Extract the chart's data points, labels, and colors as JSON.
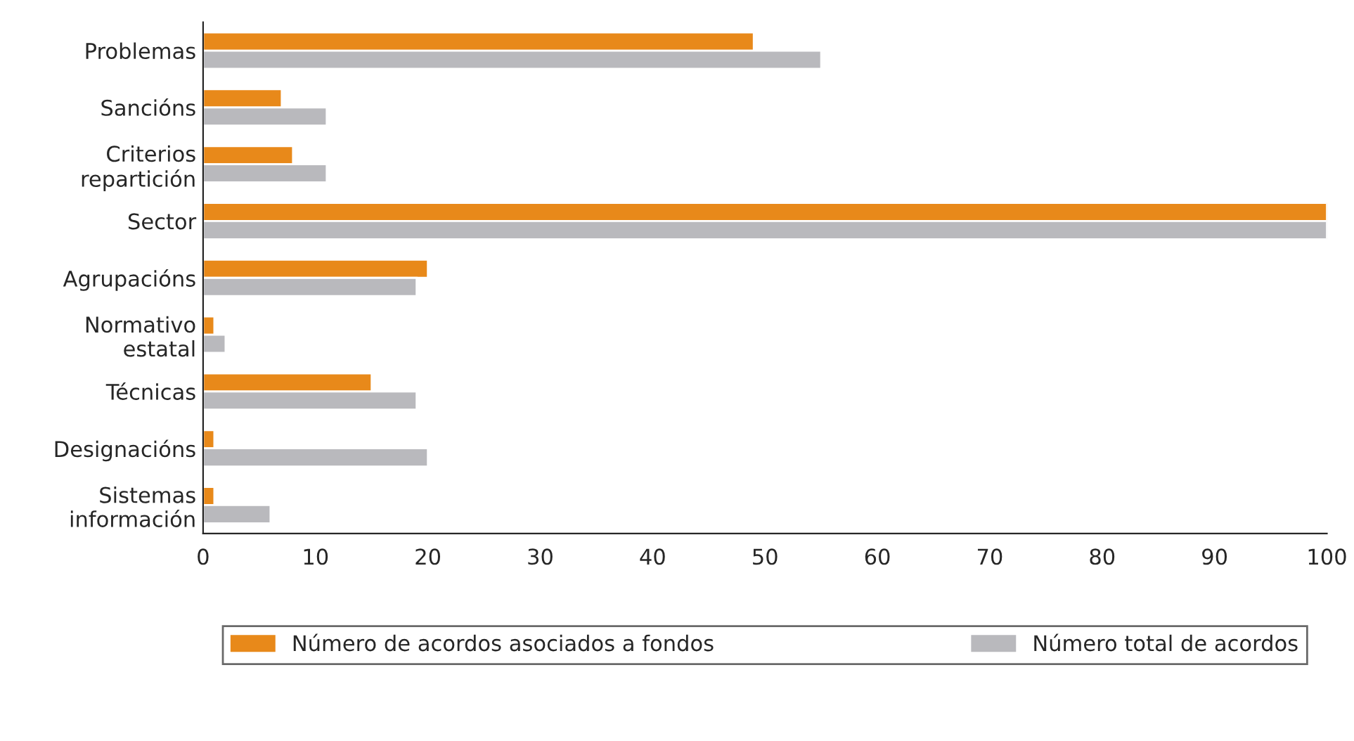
{
  "chart_data": {
    "type": "bar",
    "orientation": "horizontal",
    "categories": [
      "Problemas",
      "Sancións",
      "Criterios\nrepartición",
      "Sector",
      "Agrupacións",
      "Normativo\nestatal",
      "Técnicas",
      "Designacións",
      "Sistemas\ninformación"
    ],
    "series": [
      {
        "name": "Número de acordos asociados a fondos",
        "color": "#e8891a",
        "values": [
          49,
          7,
          8,
          100,
          20,
          1,
          15,
          1,
          1
        ]
      },
      {
        "name": "Número total de acordos",
        "color": "#b9b9bd",
        "values": [
          55,
          11,
          11,
          100,
          19,
          2,
          19,
          20,
          6
        ]
      }
    ],
    "xlim": [
      0,
      100
    ],
    "xticks": [
      0,
      10,
      20,
      30,
      40,
      50,
      60,
      70,
      80,
      90,
      100
    ],
    "grid": false,
    "legend": "bottom"
  }
}
